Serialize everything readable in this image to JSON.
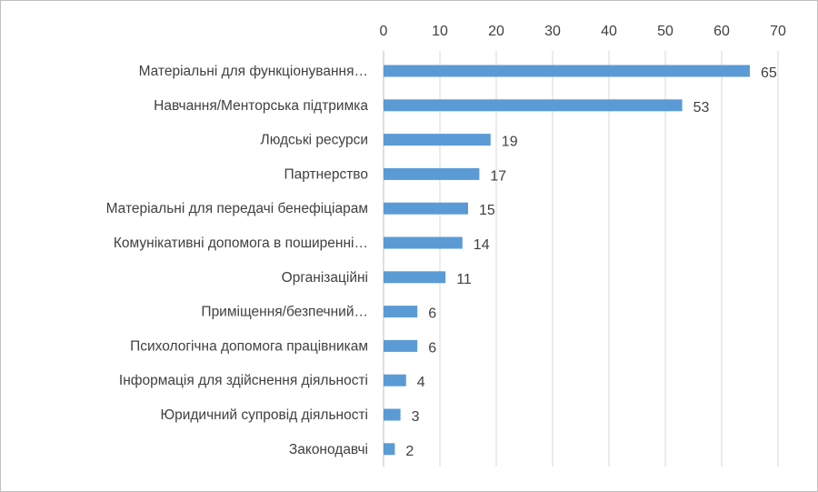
{
  "chart_data": {
    "type": "bar",
    "orientation": "horizontal",
    "categories": [
      "Матеріальні для функціонування…",
      "Навчання/Менторська підтримка",
      "Людські ресурси",
      "Партнерство",
      "Матеріальні для передачі бенефіціарам",
      "Комунікативні допомога в поширенні…",
      "Організаційні",
      "Приміщення/безпечний…",
      "Психологічна допомога працівникам",
      "Інформація для здійснення діяльності",
      "Юридичний супровід діяльності",
      "Законодавчі"
    ],
    "values": [
      65,
      53,
      19,
      17,
      15,
      14,
      11,
      6,
      6,
      4,
      3,
      2
    ],
    "xlim": [
      0,
      70
    ],
    "xticks": [
      0,
      10,
      20,
      30,
      40,
      50,
      60,
      70
    ],
    "x_axis_position": "top",
    "grid": true,
    "legend": "none",
    "colors": {
      "bar": "#5b9bd5",
      "grid": "#d9d9d9",
      "text": "#404040"
    }
  }
}
